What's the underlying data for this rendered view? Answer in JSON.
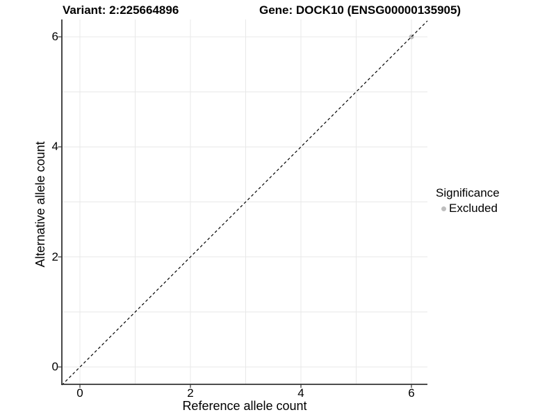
{
  "header": {
    "variant_title": "Variant: 2:225664896",
    "gene_title": "Gene: DOCK10 (ENSG00000135905)"
  },
  "chart_data": {
    "type": "scatter",
    "title": "Variant: 2:225664896  —  Gene: DOCK10 (ENSG00000135905)",
    "xlabel": "Reference allele count",
    "ylabel": "Alternative allele count",
    "xlim": [
      -0.33,
      6.33
    ],
    "ylim": [
      -0.33,
      6.33
    ],
    "x_ticks": [
      0,
      2,
      4,
      6
    ],
    "y_ticks": [
      0,
      2,
      4,
      6
    ],
    "gridline_values": [
      0,
      1,
      2,
      3,
      4,
      5,
      6
    ],
    "grid": "on",
    "points": [
      {
        "x": 6,
        "y": 6,
        "series": "Excluded"
      }
    ],
    "reference_line": {
      "type": "identity",
      "slope": 1,
      "intercept": 0,
      "style": "dashed",
      "color": "#000000"
    },
    "legend": {
      "title": "Significance",
      "position": "right",
      "items": [
        {
          "label": "Excluded",
          "color": "#BEBEBE"
        }
      ]
    }
  },
  "colors": {
    "background": "#FFFFFF",
    "panel_background": "#FFFFFF",
    "gridline": "#E8E8E8",
    "axis_line": "#333333",
    "tick_mark": "#333333",
    "point": "#BEBEBE",
    "text": "#000000"
  }
}
